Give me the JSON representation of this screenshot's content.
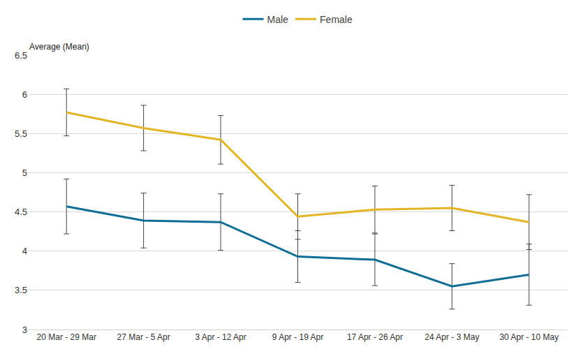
{
  "chart_data": {
    "type": "line",
    "y_label": "Average (Mean)",
    "categories": [
      "20 Mar - 29 Mar",
      "27 Mar - 5 Apr",
      "3 Apr - 12 Apr",
      "9 Apr - 19 Apr",
      "17 Apr - 26 Apr",
      "24 Apr - 3 May",
      "30 Apr - 10 May"
    ],
    "series": [
      {
        "name": "Male",
        "color": "#0f6e96",
        "values": [
          4.57,
          4.39,
          4.37,
          3.93,
          3.89,
          3.55,
          3.7
        ],
        "errors": [
          0.35,
          0.35,
          0.36,
          0.33,
          0.33,
          0.29,
          0.39
        ]
      },
      {
        "name": "Female",
        "color": "#e3b524",
        "values": [
          5.77,
          5.57,
          5.42,
          4.44,
          4.53,
          4.55,
          4.37
        ],
        "errors": [
          0.3,
          0.29,
          0.31,
          0.29,
          0.3,
          0.29,
          0.35
        ]
      }
    ],
    "ylim": [
      3,
      6.5
    ],
    "yticks": [
      3,
      3.5,
      4,
      4.5,
      5,
      5.5,
      6,
      6.5
    ],
    "grid": true,
    "legend": "top"
  }
}
